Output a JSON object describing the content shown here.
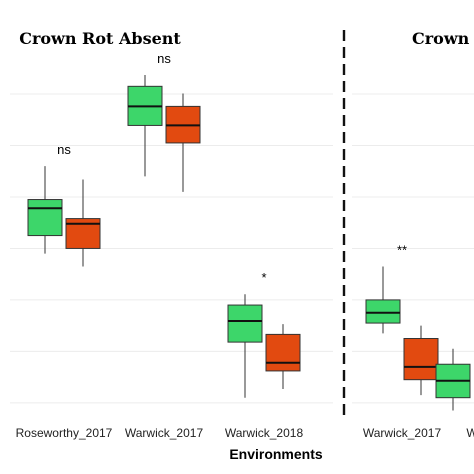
{
  "chart_data": {
    "type": "box",
    "xlabel": "Environments",
    "colors": {
      "group1": "#3dd66a",
      "group2": "#e24a10",
      "grid": "#ececec",
      "stroke": "#333333"
    },
    "panels": [
      {
        "title": "Crown Rot Absent",
        "categories": [
          {
            "label": "Roseworthy_2017",
            "significance": "ns",
            "boxes": [
              {
                "group": "group1",
                "min": 3.35,
                "q1": 3.7,
                "median": 4.23,
                "q3": 4.4,
                "max": 5.05
              },
              {
                "group": "group2",
                "min": 3.1,
                "q1": 3.45,
                "median": 3.93,
                "q3": 4.03,
                "max": 4.79
              }
            ]
          },
          {
            "label": "Warwick_2017",
            "significance": "ns",
            "boxes": [
              {
                "group": "group1",
                "min": 4.85,
                "q1": 5.84,
                "median": 6.21,
                "q3": 6.6,
                "max": 6.82
              },
              {
                "group": "group2",
                "min": 4.55,
                "q1": 5.5,
                "median": 5.84,
                "q3": 6.21,
                "max": 6.46
              }
            ]
          },
          {
            "label": "Warwick_2018",
            "significance": "*",
            "boxes": [
              {
                "group": "group1",
                "min": 0.55,
                "q1": 1.63,
                "median": 2.04,
                "q3": 2.35,
                "max": 2.56
              },
              {
                "group": "group2",
                "min": 0.72,
                "q1": 1.07,
                "median": 1.23,
                "q3": 1.78,
                "max": 1.98
              }
            ]
          }
        ]
      },
      {
        "title": "Crown R",
        "categories": [
          {
            "label": "Warwick_2017",
            "significance": "**",
            "boxes": [
              {
                "group": "group1",
                "min": 1.8,
                "q1": 2.0,
                "median": 2.2,
                "q3": 2.45,
                "max": 3.1
              },
              {
                "group": "group2",
                "min": 0.6,
                "q1": 0.9,
                "median": 1.15,
                "q3": 1.7,
                "max": 1.95
              }
            ]
          },
          {
            "label": "W",
            "significance": "",
            "boxes": [
              {
                "group": "group1",
                "min": 0.3,
                "q1": 0.55,
                "median": 0.88,
                "q3": 1.2,
                "max": 1.5
              }
            ]
          }
        ]
      }
    ],
    "ylim": [
      0,
      7.5
    ],
    "y_gridlines": [
      0.45,
      1.45,
      2.45,
      3.45,
      4.45,
      5.45,
      6.45
    ],
    "grid": true,
    "legend": "none"
  }
}
